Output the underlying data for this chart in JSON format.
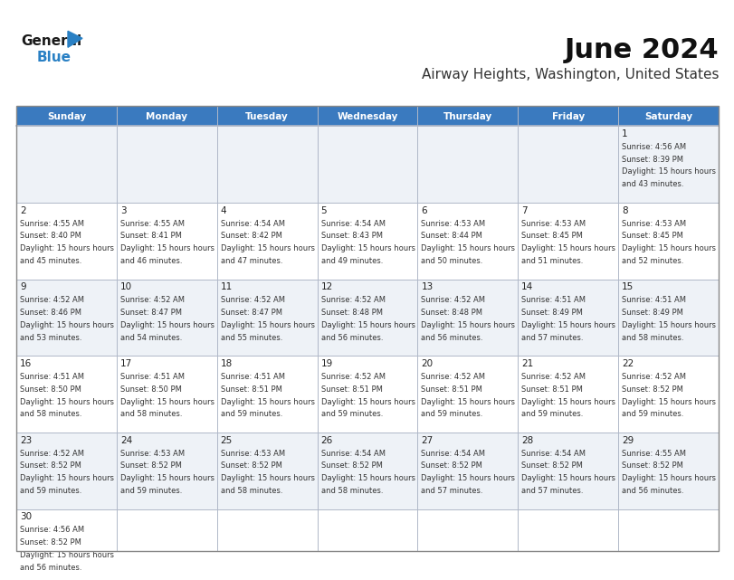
{
  "title": "June 2024",
  "subtitle": "Airway Heights, Washington, United States",
  "days_of_week": [
    "Sunday",
    "Monday",
    "Tuesday",
    "Wednesday",
    "Thursday",
    "Friday",
    "Saturday"
  ],
  "header_bg": "#3a7abf",
  "header_text": "#ffffff",
  "cell_bg_light": "#eef2f7",
  "cell_bg_white": "#ffffff",
  "grid_color": "#b0b8c8",
  "day_num_color": "#222222",
  "info_text_color": "#333333",
  "title_color": "#111111",
  "subtitle_color": "#333333",
  "logo_black": "#1a1a1a",
  "logo_blue": "#2980c4",
  "triangle_color": "#2980c4",
  "calendar_data": [
    {
      "day": 1,
      "col": 6,
      "row": 0,
      "sunrise": "4:56 AM",
      "sunset": "8:39 PM",
      "daylight": "15 hours and 43 minutes."
    },
    {
      "day": 2,
      "col": 0,
      "row": 1,
      "sunrise": "4:55 AM",
      "sunset": "8:40 PM",
      "daylight": "15 hours and 45 minutes."
    },
    {
      "day": 3,
      "col": 1,
      "row": 1,
      "sunrise": "4:55 AM",
      "sunset": "8:41 PM",
      "daylight": "15 hours and 46 minutes."
    },
    {
      "day": 4,
      "col": 2,
      "row": 1,
      "sunrise": "4:54 AM",
      "sunset": "8:42 PM",
      "daylight": "15 hours and 47 minutes."
    },
    {
      "day": 5,
      "col": 3,
      "row": 1,
      "sunrise": "4:54 AM",
      "sunset": "8:43 PM",
      "daylight": "15 hours and 49 minutes."
    },
    {
      "day": 6,
      "col": 4,
      "row": 1,
      "sunrise": "4:53 AM",
      "sunset": "8:44 PM",
      "daylight": "15 hours and 50 minutes."
    },
    {
      "day": 7,
      "col": 5,
      "row": 1,
      "sunrise": "4:53 AM",
      "sunset": "8:45 PM",
      "daylight": "15 hours and 51 minutes."
    },
    {
      "day": 8,
      "col": 6,
      "row": 1,
      "sunrise": "4:53 AM",
      "sunset": "8:45 PM",
      "daylight": "15 hours and 52 minutes."
    },
    {
      "day": 9,
      "col": 0,
      "row": 2,
      "sunrise": "4:52 AM",
      "sunset": "8:46 PM",
      "daylight": "15 hours and 53 minutes."
    },
    {
      "day": 10,
      "col": 1,
      "row": 2,
      "sunrise": "4:52 AM",
      "sunset": "8:47 PM",
      "daylight": "15 hours and 54 minutes."
    },
    {
      "day": 11,
      "col": 2,
      "row": 2,
      "sunrise": "4:52 AM",
      "sunset": "8:47 PM",
      "daylight": "15 hours and 55 minutes."
    },
    {
      "day": 12,
      "col": 3,
      "row": 2,
      "sunrise": "4:52 AM",
      "sunset": "8:48 PM",
      "daylight": "15 hours and 56 minutes."
    },
    {
      "day": 13,
      "col": 4,
      "row": 2,
      "sunrise": "4:52 AM",
      "sunset": "8:48 PM",
      "daylight": "15 hours and 56 minutes."
    },
    {
      "day": 14,
      "col": 5,
      "row": 2,
      "sunrise": "4:51 AM",
      "sunset": "8:49 PM",
      "daylight": "15 hours and 57 minutes."
    },
    {
      "day": 15,
      "col": 6,
      "row": 2,
      "sunrise": "4:51 AM",
      "sunset": "8:49 PM",
      "daylight": "15 hours and 58 minutes."
    },
    {
      "day": 16,
      "col": 0,
      "row": 3,
      "sunrise": "4:51 AM",
      "sunset": "8:50 PM",
      "daylight": "15 hours and 58 minutes."
    },
    {
      "day": 17,
      "col": 1,
      "row": 3,
      "sunrise": "4:51 AM",
      "sunset": "8:50 PM",
      "daylight": "15 hours and 58 minutes."
    },
    {
      "day": 18,
      "col": 2,
      "row": 3,
      "sunrise": "4:51 AM",
      "sunset": "8:51 PM",
      "daylight": "15 hours and 59 minutes."
    },
    {
      "day": 19,
      "col": 3,
      "row": 3,
      "sunrise": "4:52 AM",
      "sunset": "8:51 PM",
      "daylight": "15 hours and 59 minutes."
    },
    {
      "day": 20,
      "col": 4,
      "row": 3,
      "sunrise": "4:52 AM",
      "sunset": "8:51 PM",
      "daylight": "15 hours and 59 minutes."
    },
    {
      "day": 21,
      "col": 5,
      "row": 3,
      "sunrise": "4:52 AM",
      "sunset": "8:51 PM",
      "daylight": "15 hours and 59 minutes."
    },
    {
      "day": 22,
      "col": 6,
      "row": 3,
      "sunrise": "4:52 AM",
      "sunset": "8:52 PM",
      "daylight": "15 hours and 59 minutes."
    },
    {
      "day": 23,
      "col": 0,
      "row": 4,
      "sunrise": "4:52 AM",
      "sunset": "8:52 PM",
      "daylight": "15 hours and 59 minutes."
    },
    {
      "day": 24,
      "col": 1,
      "row": 4,
      "sunrise": "4:53 AM",
      "sunset": "8:52 PM",
      "daylight": "15 hours and 59 minutes."
    },
    {
      "day": 25,
      "col": 2,
      "row": 4,
      "sunrise": "4:53 AM",
      "sunset": "8:52 PM",
      "daylight": "15 hours and 58 minutes."
    },
    {
      "day": 26,
      "col": 3,
      "row": 4,
      "sunrise": "4:54 AM",
      "sunset": "8:52 PM",
      "daylight": "15 hours and 58 minutes."
    },
    {
      "day": 27,
      "col": 4,
      "row": 4,
      "sunrise": "4:54 AM",
      "sunset": "8:52 PM",
      "daylight": "15 hours and 57 minutes."
    },
    {
      "day": 28,
      "col": 5,
      "row": 4,
      "sunrise": "4:54 AM",
      "sunset": "8:52 PM",
      "daylight": "15 hours and 57 minutes."
    },
    {
      "day": 29,
      "col": 6,
      "row": 4,
      "sunrise": "4:55 AM",
      "sunset": "8:52 PM",
      "daylight": "15 hours and 56 minutes."
    },
    {
      "day": 30,
      "col": 0,
      "row": 5,
      "sunrise": "4:56 AM",
      "sunset": "8:52 PM",
      "daylight": "15 hours and 56 minutes."
    }
  ],
  "num_rows": 6,
  "num_cols": 7
}
